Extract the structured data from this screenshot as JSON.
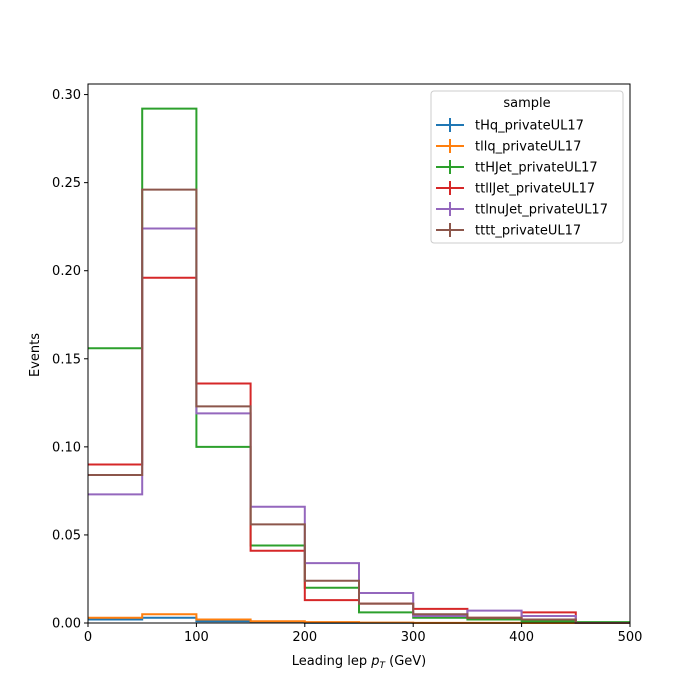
{
  "chart_data": {
    "type": "step",
    "xlabel": "Leading lep",
    "xlabel_symbol": "p",
    "xlabel_subscript": "T",
    "xlabel_unit": "(GeV)",
    "ylabel": "Events",
    "xlim": [
      0,
      500
    ],
    "ylim": [
      0,
      0.306
    ],
    "x_ticks": [
      0,
      100,
      200,
      300,
      400,
      500
    ],
    "x_tick_labels": [
      "0",
      "100",
      "200",
      "300",
      "400",
      "500"
    ],
    "y_ticks": [
      0,
      0.05,
      0.1,
      0.15,
      0.2,
      0.25,
      0.3
    ],
    "y_tick_labels": [
      "0.00",
      "0.05",
      "0.10",
      "0.15",
      "0.20",
      "0.25",
      "0.30"
    ],
    "bin_edges": [
      0,
      50,
      100,
      150,
      200,
      250,
      300,
      350,
      400,
      450,
      500
    ],
    "legend_title": "sample",
    "legend_position": "top-right",
    "grid": false,
    "series": [
      {
        "name": "tHq_privateUL17",
        "color": "#1f77b4",
        "values": [
          0.002,
          0.003,
          0.001,
          0.0003,
          0.0001,
          5e-05,
          2e-05,
          1e-05,
          0.0,
          0.0
        ]
      },
      {
        "name": "tllq_privateUL17",
        "color": "#ff7f0e",
        "values": [
          0.003,
          0.005,
          0.002,
          0.001,
          0.0005,
          0.0002,
          0.0001,
          5e-05,
          2e-05,
          1e-05
        ]
      },
      {
        "name": "ttHJet_privateUL17",
        "color": "#2ca02c",
        "values": [
          0.156,
          0.292,
          0.1,
          0.044,
          0.02,
          0.006,
          0.003,
          0.002,
          0.001,
          0.0005
        ]
      },
      {
        "name": "ttllJet_privateUL17",
        "color": "#d62728",
        "values": [
          0.09,
          0.196,
          0.136,
          0.041,
          0.013,
          0.011,
          0.008,
          0.003,
          0.006,
          0.0
        ]
      },
      {
        "name": "ttlnuJet_privateUL17",
        "color": "#9467bd",
        "values": [
          0.073,
          0.224,
          0.119,
          0.066,
          0.034,
          0.017,
          0.004,
          0.007,
          0.004,
          0.0
        ]
      },
      {
        "name": "tttt_privateUL17",
        "color": "#8c564b",
        "values": [
          0.084,
          0.246,
          0.123,
          0.056,
          0.024,
          0.011,
          0.005,
          0.003,
          0.002,
          0.0
        ]
      }
    ]
  }
}
